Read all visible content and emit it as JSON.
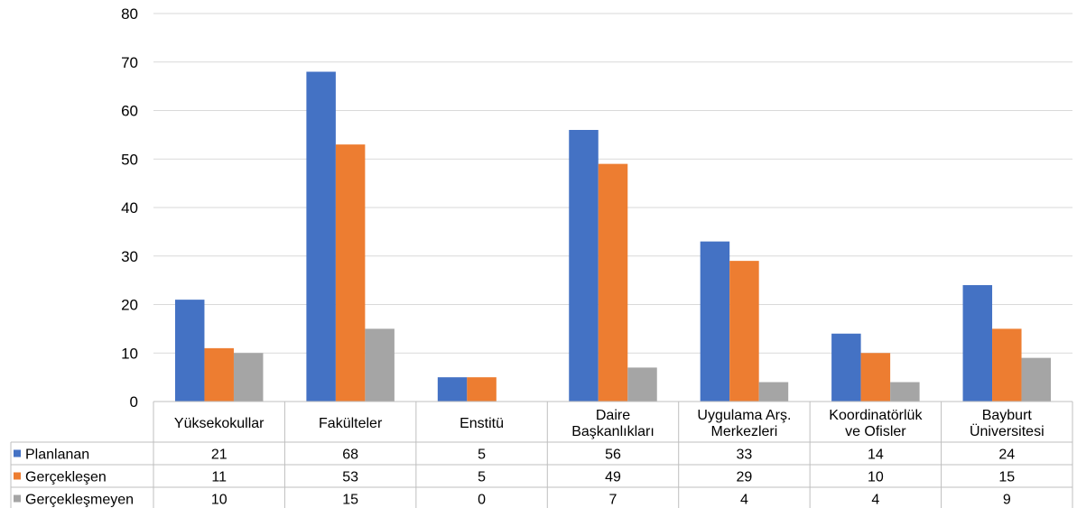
{
  "chart_data": {
    "type": "bar",
    "ylim": [
      0,
      80
    ],
    "yticks": [
      0,
      10,
      20,
      30,
      40,
      50,
      60,
      70,
      80
    ],
    "grid": true,
    "legend": "data-table-left",
    "categories": [
      [
        "Yüksekokullar"
      ],
      [
        "Fakülteler"
      ],
      [
        "Enstitü"
      ],
      [
        "Daire",
        "Başkanlıkları"
      ],
      [
        "Uygulama Arş.",
        "Merkezleri"
      ],
      [
        "Koordinatörlük",
        "ve Ofisler"
      ],
      [
        "Bayburt",
        "Üniversitesi"
      ]
    ],
    "series": [
      {
        "name": "Planlanan",
        "color": "#4472C4",
        "values": [
          21,
          68,
          5,
          56,
          33,
          14,
          24
        ]
      },
      {
        "name": "Gerçekleşen",
        "color": "#ED7D31",
        "values": [
          11,
          53,
          5,
          49,
          29,
          10,
          15
        ]
      },
      {
        "name": "Gerçekleşmeyen",
        "color": "#A5A5A5",
        "values": [
          10,
          15,
          0,
          7,
          4,
          4,
          9
        ]
      }
    ]
  }
}
